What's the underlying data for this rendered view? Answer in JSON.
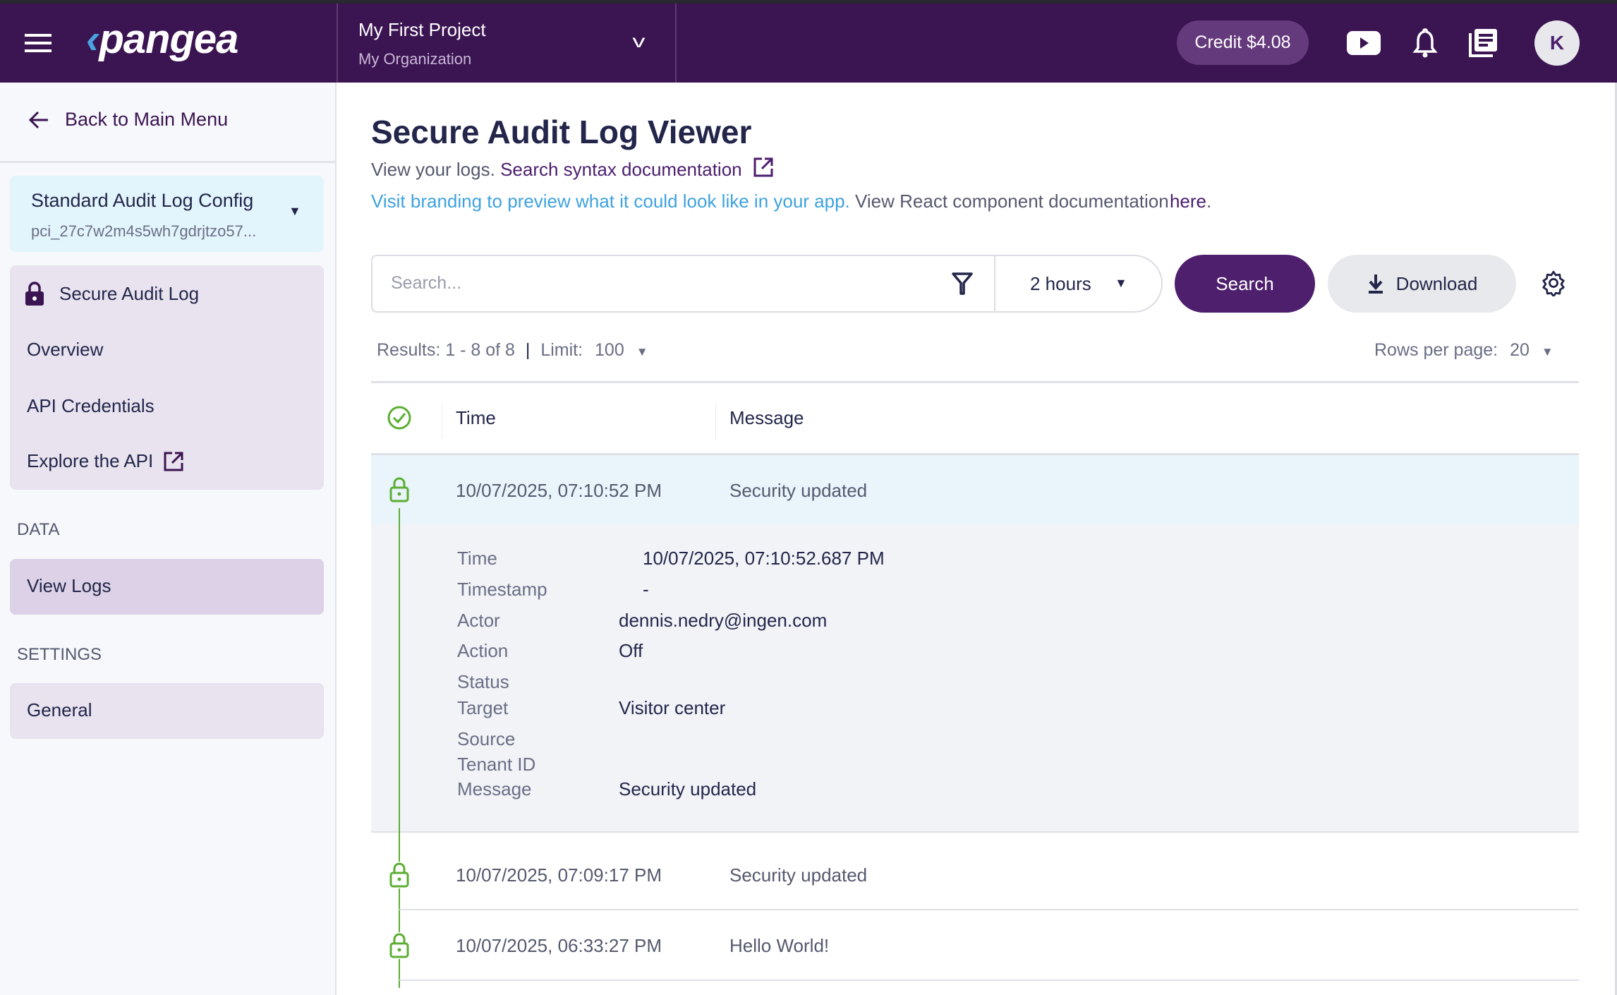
{
  "header": {
    "logo": "pangea",
    "project": "My First Project",
    "organization": "My Organization",
    "credit": "Credit $4.08",
    "avatar": "K",
    "icons": [
      "menu-icon",
      "youtube-icon",
      "bell-icon",
      "docs-icon"
    ]
  },
  "sidebar": {
    "back": "Back to Main Menu",
    "config_name": "Standard Audit Log Config",
    "config_id": "pci_27c7w2m4s5wh7gdrjtzo57...",
    "group_title": "Secure Audit Log",
    "items": [
      "Overview",
      "API Credentials",
      "Explore the API"
    ],
    "data_section": "DATA",
    "view_logs": "View Logs",
    "settings_section": "SETTINGS",
    "general": "General"
  },
  "main": {
    "title": "Secure Audit Log Viewer",
    "sub_prefix": "View your logs.",
    "sub_link": "Search syntax documentation",
    "branding_link": "Visit branding to preview what it could look like in your app.",
    "react_text": "View React component documentation",
    "react_link": "here",
    "react_end": ".",
    "search_placeholder": "Search...",
    "time_range": "2 hours",
    "search_btn": "Search",
    "download_btn": "Download",
    "results": "Results: 1 - 8 of 8",
    "limit_label": "Limit:",
    "limit": "100",
    "rows_label": "Rows per page:",
    "rows": "20",
    "columns": [
      "Time",
      "Message"
    ],
    "rows_data": [
      {
        "time": "10/07/2025, 07:10:52 PM",
        "message": "Security updated"
      },
      {
        "time": "10/07/2025, 07:09:17 PM",
        "message": "Security updated"
      },
      {
        "time": "10/07/2025, 06:33:27 PM",
        "message": "Hello World!"
      }
    ],
    "detail": [
      {
        "label": "Time",
        "value": "10/07/2025, 07:10:52.687 PM"
      },
      {
        "label": "Timestamp",
        "value": "-"
      },
      {
        "label": "Actor",
        "value": "dennis.nedry@ingen.com"
      },
      {
        "label": "Action",
        "value": "Off"
      },
      {
        "label": "Status",
        "value": ""
      },
      {
        "label": "Target",
        "value": "Visitor center"
      },
      {
        "label": "Source",
        "value": ""
      },
      {
        "label": "Tenant ID",
        "value": ""
      },
      {
        "label": "Message",
        "value": "Security updated"
      }
    ]
  },
  "colors": {
    "header": "#3b1452",
    "accent": "#4e1f6d",
    "verified": "#5cae32",
    "link": "#3ea2df"
  }
}
